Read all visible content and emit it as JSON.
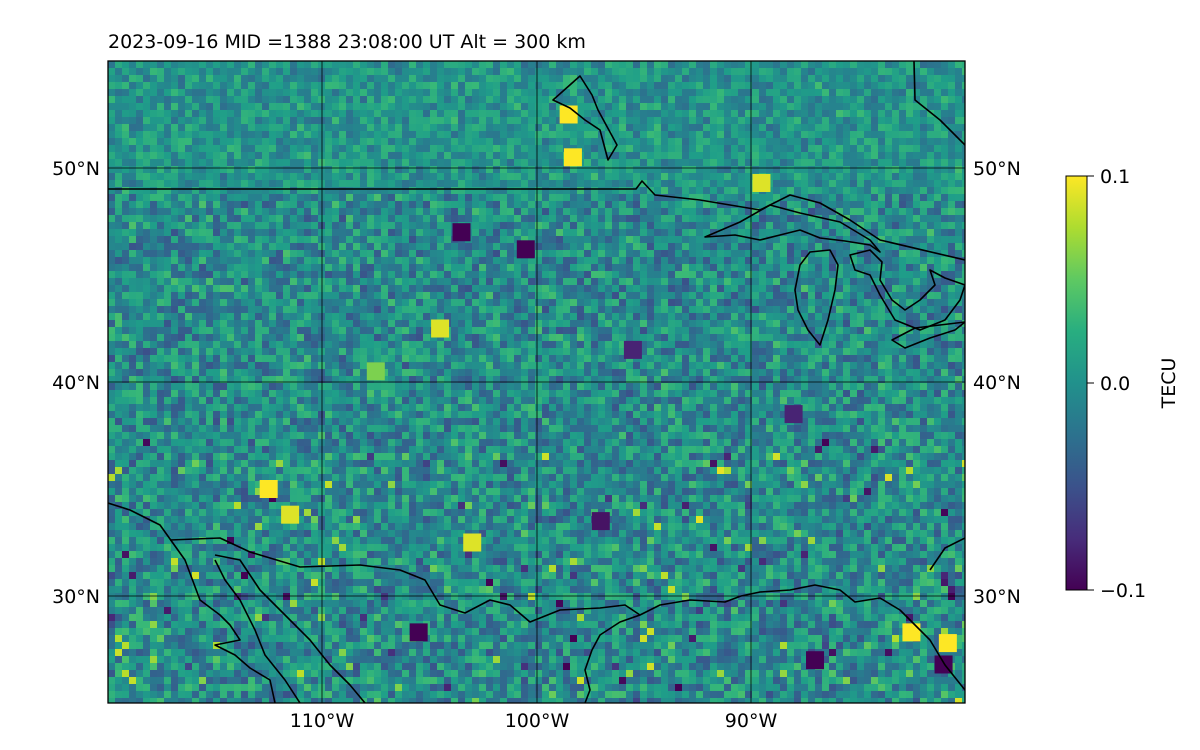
{
  "title": "2023-09-16  MID =1388    23:08:00  UT  Alt = 300 km",
  "chart_data": {
    "type": "heatmap",
    "title": "2023-09-16  MID =1388    23:08:00  UT  Alt = 300 km",
    "x_ticks": [
      {
        "value": -110,
        "label": "110°W"
      },
      {
        "value": -100,
        "label": "100°W"
      },
      {
        "value": -90,
        "label": "90°W"
      }
    ],
    "y_ticks": [
      {
        "value": 30,
        "label": "30°N"
      },
      {
        "value": 40,
        "label": "40°N"
      },
      {
        "value": 50,
        "label": "50°N"
      }
    ],
    "xlim": [
      -120,
      -80
    ],
    "ylim": [
      25,
      55
    ],
    "grid": true,
    "colormap": "viridis",
    "colorbar": {
      "label": "TECU",
      "range": [
        -0.1,
        0.1
      ],
      "ticks": [
        {
          "value": 0.1,
          "label": "0.1"
        },
        {
          "value": 0.0,
          "label": "0.0"
        },
        {
          "value": -0.1,
          "label": "−0.1"
        }
      ]
    },
    "coastline_color": "#000000",
    "highlights": [
      {
        "lon": -98.5,
        "lat": 52.5,
        "value": 0.1
      },
      {
        "lon": -104.5,
        "lat": 42.5,
        "value": 0.09
      },
      {
        "lon": -112.5,
        "lat": 35.0,
        "value": 0.1
      },
      {
        "lon": -111.5,
        "lat": 33.8,
        "value": 0.09
      },
      {
        "lon": -98.3,
        "lat": 50.5,
        "value": 0.1
      },
      {
        "lon": -82.5,
        "lat": 28.3,
        "value": 0.1
      },
      {
        "lon": -103.0,
        "lat": 32.5,
        "value": 0.09
      },
      {
        "lon": -89.5,
        "lat": 49.3,
        "value": 0.09
      },
      {
        "lon": -107.5,
        "lat": 40.5,
        "value": 0.06
      },
      {
        "lon": -80.8,
        "lat": 27.8,
        "value": 0.1
      }
    ],
    "lowlights": [
      {
        "lon": -103.5,
        "lat": 47.0,
        "value": -0.1
      },
      {
        "lon": -100.5,
        "lat": 46.2,
        "value": -0.1
      },
      {
        "lon": -87.0,
        "lat": 27.0,
        "value": -0.1
      },
      {
        "lon": -105.5,
        "lat": 28.3,
        "value": -0.1
      },
      {
        "lon": -81.0,
        "lat": 26.8,
        "value": -0.1
      },
      {
        "lon": -95.5,
        "lat": 41.5,
        "value": -0.08
      },
      {
        "lon": -97.0,
        "lat": 33.5,
        "value": -0.09
      },
      {
        "lon": -88.0,
        "lat": 38.5,
        "value": -0.08
      }
    ]
  }
}
